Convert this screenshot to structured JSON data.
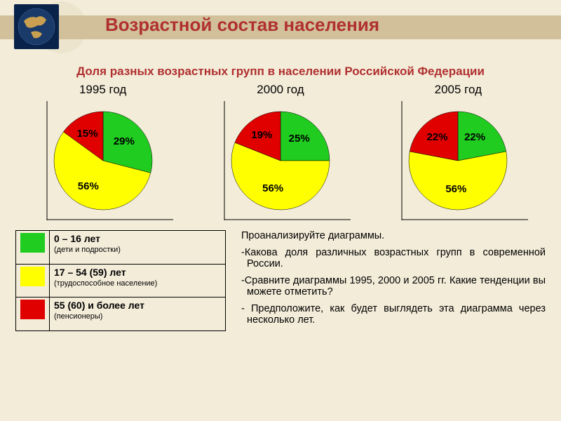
{
  "colors": {
    "background": "#f3ecd9",
    "title_bar": "#d1c09a",
    "title_text": "#b03030",
    "green": "#1fcc1f",
    "yellow": "#ffff00",
    "red": "#e00000",
    "black": "#000000"
  },
  "header": {
    "title": "Возрастной  состав  населения"
  },
  "subtitle": "Доля разных возрастных  групп в населении Российской Федерации",
  "charts": [
    {
      "year": "1995 год",
      "slices": {
        "children": 29,
        "working": 56,
        "pension": 15
      },
      "labels": {
        "children": "29%",
        "working": "56%",
        "pension": "15%"
      }
    },
    {
      "year": "2000 год",
      "slices": {
        "children": 25,
        "working": 56,
        "pension": 19
      },
      "labels": {
        "children": "25%",
        "working": "56%",
        "pension": "19%"
      }
    },
    {
      "year": "2005 год",
      "slices": {
        "children": 22,
        "working": 56,
        "pension": 22
      },
      "labels": {
        "children": "22%",
        "working": "56%",
        "pension": "22%"
      }
    }
  ],
  "legend": [
    {
      "color": "#1fcc1f",
      "main": "0 – 16 лет",
      "sub": "(дети и подростки)"
    },
    {
      "color": "#ffff00",
      "main": "17 – 54 (59) лет",
      "sub": "(трудоспособное население)"
    },
    {
      "color": "#e00000",
      "main": "55 (60) и более лет",
      "sub": "(пенсионеры)"
    }
  ],
  "tasks": [
    "  Проанализируйте диаграммы.",
    "-Какова доля различных возрастных групп в современной России.",
    "-Сравните диаграммы 1995, 2000 и 2005 гг. Какие тенденции вы можете отметить?",
    "- Предположите, как будет выглядеть эта диаграмма через несколько лет."
  ]
}
